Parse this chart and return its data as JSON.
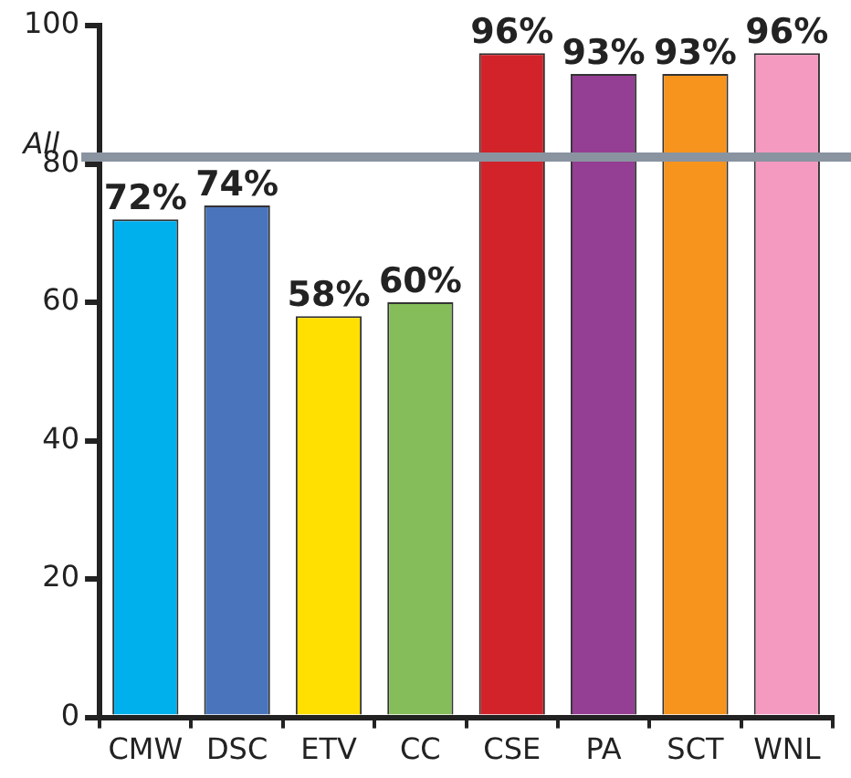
{
  "chart_data": {
    "type": "bar",
    "categories": [
      "CMW",
      "DSC",
      "ETV",
      "CC",
      "CSE",
      "PA",
      "SCT",
      "WNL"
    ],
    "values": [
      72,
      74,
      58,
      60,
      96,
      93,
      93,
      96
    ],
    "colors": [
      "#00b0ec",
      "#4a75bc",
      "#ffe000",
      "#84bd5a",
      "#d2232a",
      "#943e94",
      "#f7941d",
      "#f49ac1"
    ],
    "value_labels": [
      "72%",
      "74%",
      "58%",
      "60%",
      "96%",
      "93%",
      "93%",
      "96%"
    ],
    "ylim": [
      0,
      100
    ],
    "yticks": [
      0,
      20,
      40,
      60,
      80,
      100
    ],
    "ref_lines": [
      {
        "axis": "y",
        "value": 81,
        "label": "All",
        "color": "#8a93a0"
      }
    ],
    "grid": false,
    "legend": false
  }
}
